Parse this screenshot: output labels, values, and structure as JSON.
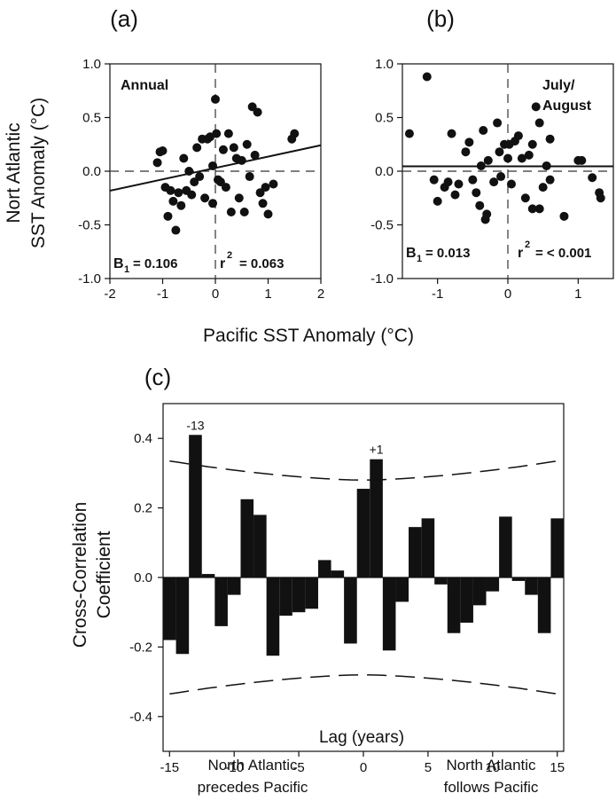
{
  "figure": {
    "shared_ylabel_line1": "Nort Atlantic",
    "shared_ylabel_line2": "SST Anomaly (°C)",
    "shared_xlabel": "Pacific SST Anomaly (°C)"
  },
  "chart_data": [
    {
      "panel": "(a)",
      "type": "scatter",
      "annotation": "Annual",
      "stats": {
        "b1_label": "B",
        "b1_sub": "1",
        "b1_value": "= 0.106",
        "r2_label": "r",
        "r2_sup": "2",
        "r2_value": "= 0.063"
      },
      "xlim": [
        -2,
        2
      ],
      "ylim": [
        -1,
        1
      ],
      "xticks": [
        "-2",
        "-1",
        "0",
        "1",
        "2"
      ],
      "yticks": [
        "1.0",
        "0.5",
        "0.0",
        "-0.5",
        "-1.0"
      ],
      "fit_line": {
        "intercept": 0.03,
        "slope": 0.106
      },
      "reference_lines": {
        "x": 0,
        "y": 0,
        "style": "dashed"
      },
      "points": [
        [
          -1.1,
          0.08
        ],
        [
          -1.05,
          0.18
        ],
        [
          -1.0,
          0.19
        ],
        [
          -0.95,
          -0.15
        ],
        [
          -0.9,
          -0.42
        ],
        [
          -0.85,
          -0.18
        ],
        [
          -0.8,
          -0.28
        ],
        [
          -0.75,
          -0.55
        ],
        [
          -0.7,
          -0.2
        ],
        [
          -0.65,
          -0.32
        ],
        [
          -0.6,
          0.12
        ],
        [
          -0.55,
          -0.18
        ],
        [
          -0.5,
          0.0
        ],
        [
          -0.45,
          -0.22
        ],
        [
          -0.4,
          -0.1
        ],
        [
          -0.35,
          0.22
        ],
        [
          -0.3,
          -0.05
        ],
        [
          -0.25,
          0.3
        ],
        [
          -0.2,
          -0.25
        ],
        [
          -0.15,
          0.3
        ],
        [
          -0.1,
          0.32
        ],
        [
          -0.05,
          0.05
        ],
        [
          -0.05,
          -0.3
        ],
        [
          0.0,
          0.67
        ],
        [
          0.02,
          0.35
        ],
        [
          0.05,
          -0.08
        ],
        [
          0.1,
          -0.1
        ],
        [
          0.15,
          0.2
        ],
        [
          0.2,
          -0.15
        ],
        [
          0.25,
          0.35
        ],
        [
          0.3,
          -0.38
        ],
        [
          0.35,
          0.22
        ],
        [
          0.4,
          0.12
        ],
        [
          0.45,
          -0.25
        ],
        [
          0.5,
          0.1
        ],
        [
          0.55,
          -0.38
        ],
        [
          0.6,
          0.25
        ],
        [
          0.65,
          -0.05
        ],
        [
          0.7,
          0.6
        ],
        [
          0.75,
          0.15
        ],
        [
          0.8,
          0.55
        ],
        [
          0.85,
          -0.2
        ],
        [
          0.9,
          -0.3
        ],
        [
          0.95,
          -0.15
        ],
        [
          1.0,
          -0.4
        ],
        [
          1.1,
          -0.12
        ],
        [
          1.45,
          0.3
        ],
        [
          1.5,
          0.35
        ]
      ]
    },
    {
      "panel": "(b)",
      "type": "scatter",
      "annotation_line1": "July/",
      "annotation_line2": "August",
      "stats": {
        "b1_label": "B",
        "b1_sub": "1",
        "b1_value": "= 0.013",
        "r2_label": "r",
        "r2_sup": "2",
        "r2_value": "= < 0.001"
      },
      "xlim": [
        -1.5,
        1.5
      ],
      "ylim": [
        -1,
        1
      ],
      "xticks": [
        "-1",
        "0",
        "1"
      ],
      "yticks": [
        "1.0",
        "0.5",
        "0.0",
        "-0.5",
        "-1.0"
      ],
      "fit_line": {
        "intercept": 0.045,
        "slope": 0.0
      },
      "reference_lines": {
        "x": 0,
        "y": 0,
        "style": "dashed"
      },
      "points": [
        [
          -1.4,
          0.35
        ],
        [
          -1.15,
          0.88
        ],
        [
          -1.05,
          -0.08
        ],
        [
          -1.0,
          -0.28
        ],
        [
          -0.9,
          -0.15
        ],
        [
          -0.85,
          -0.1
        ],
        [
          -0.8,
          0.35
        ],
        [
          -0.75,
          -0.22
        ],
        [
          -0.7,
          -0.12
        ],
        [
          -0.6,
          0.18
        ],
        [
          -0.55,
          0.27
        ],
        [
          -0.5,
          -0.08
        ],
        [
          -0.45,
          -0.2
        ],
        [
          -0.4,
          -0.32
        ],
        [
          -0.38,
          0.05
        ],
        [
          -0.35,
          0.38
        ],
        [
          -0.32,
          -0.45
        ],
        [
          -0.3,
          -0.4
        ],
        [
          -0.28,
          0.1
        ],
        [
          -0.2,
          -0.1
        ],
        [
          -0.15,
          0.45
        ],
        [
          -0.12,
          0.18
        ],
        [
          -0.1,
          -0.05
        ],
        [
          -0.05,
          0.25
        ],
        [
          0.0,
          0.12
        ],
        [
          0.02,
          0.25
        ],
        [
          0.05,
          -0.12
        ],
        [
          0.1,
          0.28
        ],
        [
          0.15,
          0.33
        ],
        [
          0.2,
          0.12
        ],
        [
          0.25,
          -0.25
        ],
        [
          0.3,
          0.15
        ],
        [
          0.35,
          0.25
        ],
        [
          0.35,
          -0.35
        ],
        [
          0.4,
          0.6
        ],
        [
          0.45,
          0.45
        ],
        [
          0.45,
          -0.35
        ],
        [
          0.5,
          -0.15
        ],
        [
          0.55,
          0.05
        ],
        [
          0.6,
          -0.08
        ],
        [
          0.6,
          0.3
        ],
        [
          0.8,
          -0.42
        ],
        [
          1.0,
          0.1
        ],
        [
          1.05,
          0.1
        ],
        [
          1.2,
          -0.06
        ],
        [
          1.3,
          -0.2
        ],
        [
          1.32,
          -0.25
        ]
      ]
    },
    {
      "panel": "(c)",
      "type": "bar",
      "ylabel_line1": "Cross-Correlation",
      "ylabel_line2": "Coefficient",
      "xlabel": "Lag (years)",
      "xlim": [
        -15.5,
        15.5
      ],
      "ylim": [
        -0.5,
        0.5
      ],
      "xticks": [
        "-15",
        "-10",
        "-5",
        "0",
        "5",
        "10",
        "15"
      ],
      "yticks": [
        "0.4",
        "0.2",
        "0.0",
        "-0.2",
        "-0.4"
      ],
      "bar_labels": [
        {
          "lag": -13,
          "text": "-13"
        },
        {
          "lag": 1,
          "text": "+1"
        }
      ],
      "note_left_line1": "North Atlantic",
      "note_left_line2": "precedes Pacific",
      "note_right_line1": "North Atlantic",
      "note_right_line2": "follows Pacific",
      "significance_bounds": {
        "at_lag_15": 0.335,
        "at_lag_0": 0.28,
        "style": "dashed"
      },
      "lags": [
        -15,
        -14,
        -13,
        -12,
        -11,
        -10,
        -9,
        -8,
        -7,
        -6,
        -5,
        -4,
        -3,
        -2,
        -1,
        0,
        1,
        2,
        3,
        4,
        5,
        6,
        7,
        8,
        9,
        10,
        11,
        12,
        13,
        14,
        15
      ],
      "values": [
        -0.18,
        -0.22,
        0.41,
        0.01,
        -0.14,
        -0.05,
        0.225,
        0.18,
        -0.225,
        -0.11,
        -0.1,
        -0.09,
        0.05,
        0.02,
        -0.19,
        0.255,
        0.34,
        -0.21,
        -0.07,
        0.145,
        0.17,
        -0.02,
        -0.16,
        -0.13,
        -0.08,
        -0.04,
        0.175,
        -0.01,
        -0.05,
        -0.16,
        0.17
      ]
    }
  ]
}
